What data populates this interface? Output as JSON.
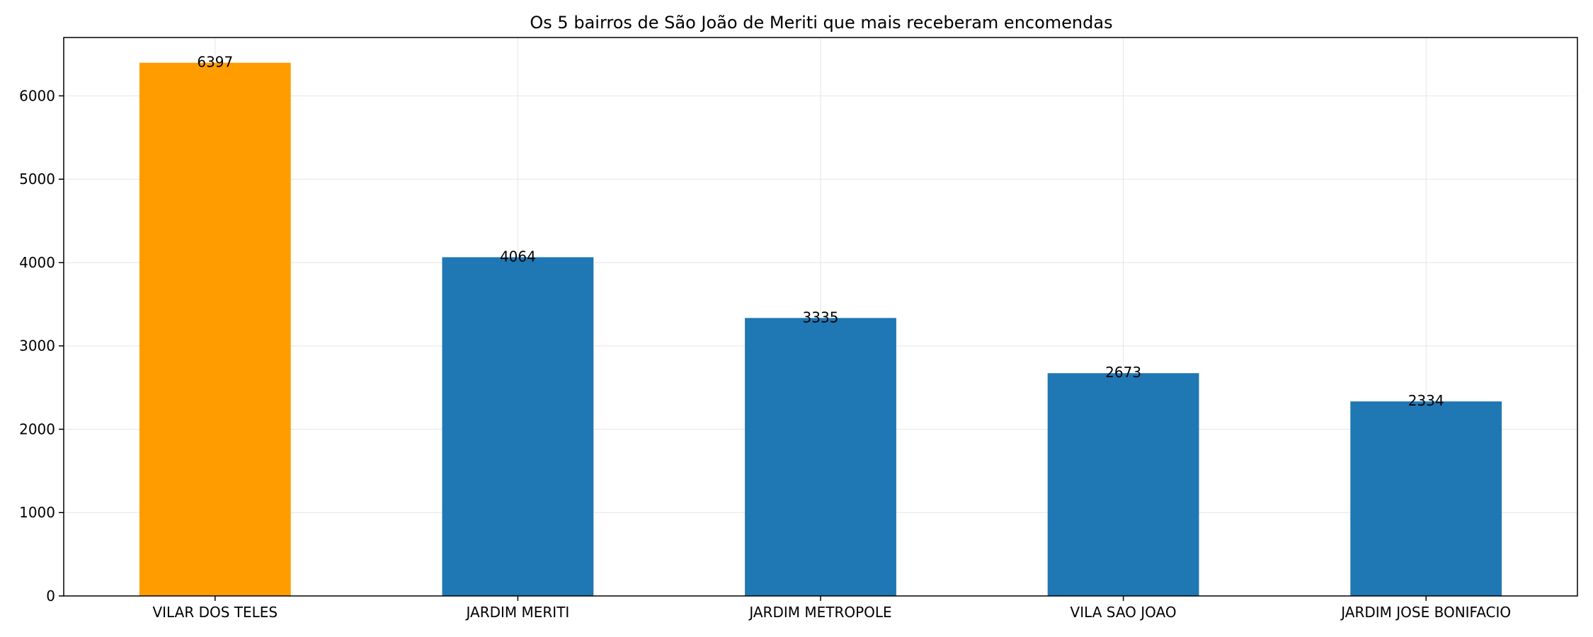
{
  "chart_data": {
    "type": "bar",
    "title": "Os 5 bairros de São João de Meriti que mais receberam encomendas",
    "xlabel": "",
    "ylabel": "",
    "categories": [
      "VILAR DOS TELES",
      "JARDIM MERITI",
      "JARDIM METROPOLE",
      "VILA SAO JOAO",
      "JARDIM JOSE BONIFACIO"
    ],
    "values": [
      6397,
      4064,
      3335,
      2673,
      2334
    ],
    "data_labels": [
      "6397",
      "4064",
      "3335",
      "2673",
      "2334"
    ],
    "bar_colors": [
      "#ff9c00",
      "#1f77b4",
      "#1f77b4",
      "#1f77b4",
      "#1f77b4"
    ],
    "ylim": [
      0,
      6700
    ],
    "yticks": [
      0,
      1000,
      2000,
      3000,
      4000,
      5000,
      6000
    ],
    "ytick_labels": [
      "0",
      "1000",
      "2000",
      "3000",
      "4000",
      "5000",
      "6000"
    ],
    "grid": true,
    "legend": "none"
  }
}
